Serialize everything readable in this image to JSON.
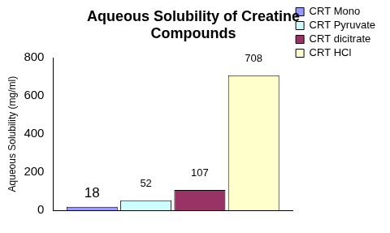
{
  "chart_data": {
    "type": "bar",
    "title": "Aqueous Solubility of Creatine Compounds",
    "y_label": "Aqueous Solubility (mg/ml)",
    "categories": [
      null
    ],
    "series": [
      {
        "name": "CRT Mono",
        "color": "#9999ff",
        "values": [
          18
        ]
      },
      {
        "name": "CRT Pyruvate",
        "color": "#ccffff",
        "values": [
          52
        ]
      },
      {
        "name": "CRT dicitrate",
        "color": "#993366",
        "values": [
          107
        ]
      },
      {
        "name": "CRT HCl",
        "color": "#ffffcc",
        "values": [
          708
        ]
      }
    ],
    "ylim": [
      0,
      800
    ],
    "yticks": [
      0,
      200,
      400,
      600,
      800
    ],
    "grid": false,
    "legend": "right",
    "data_labels": true,
    "tick_labels": "y"
  }
}
